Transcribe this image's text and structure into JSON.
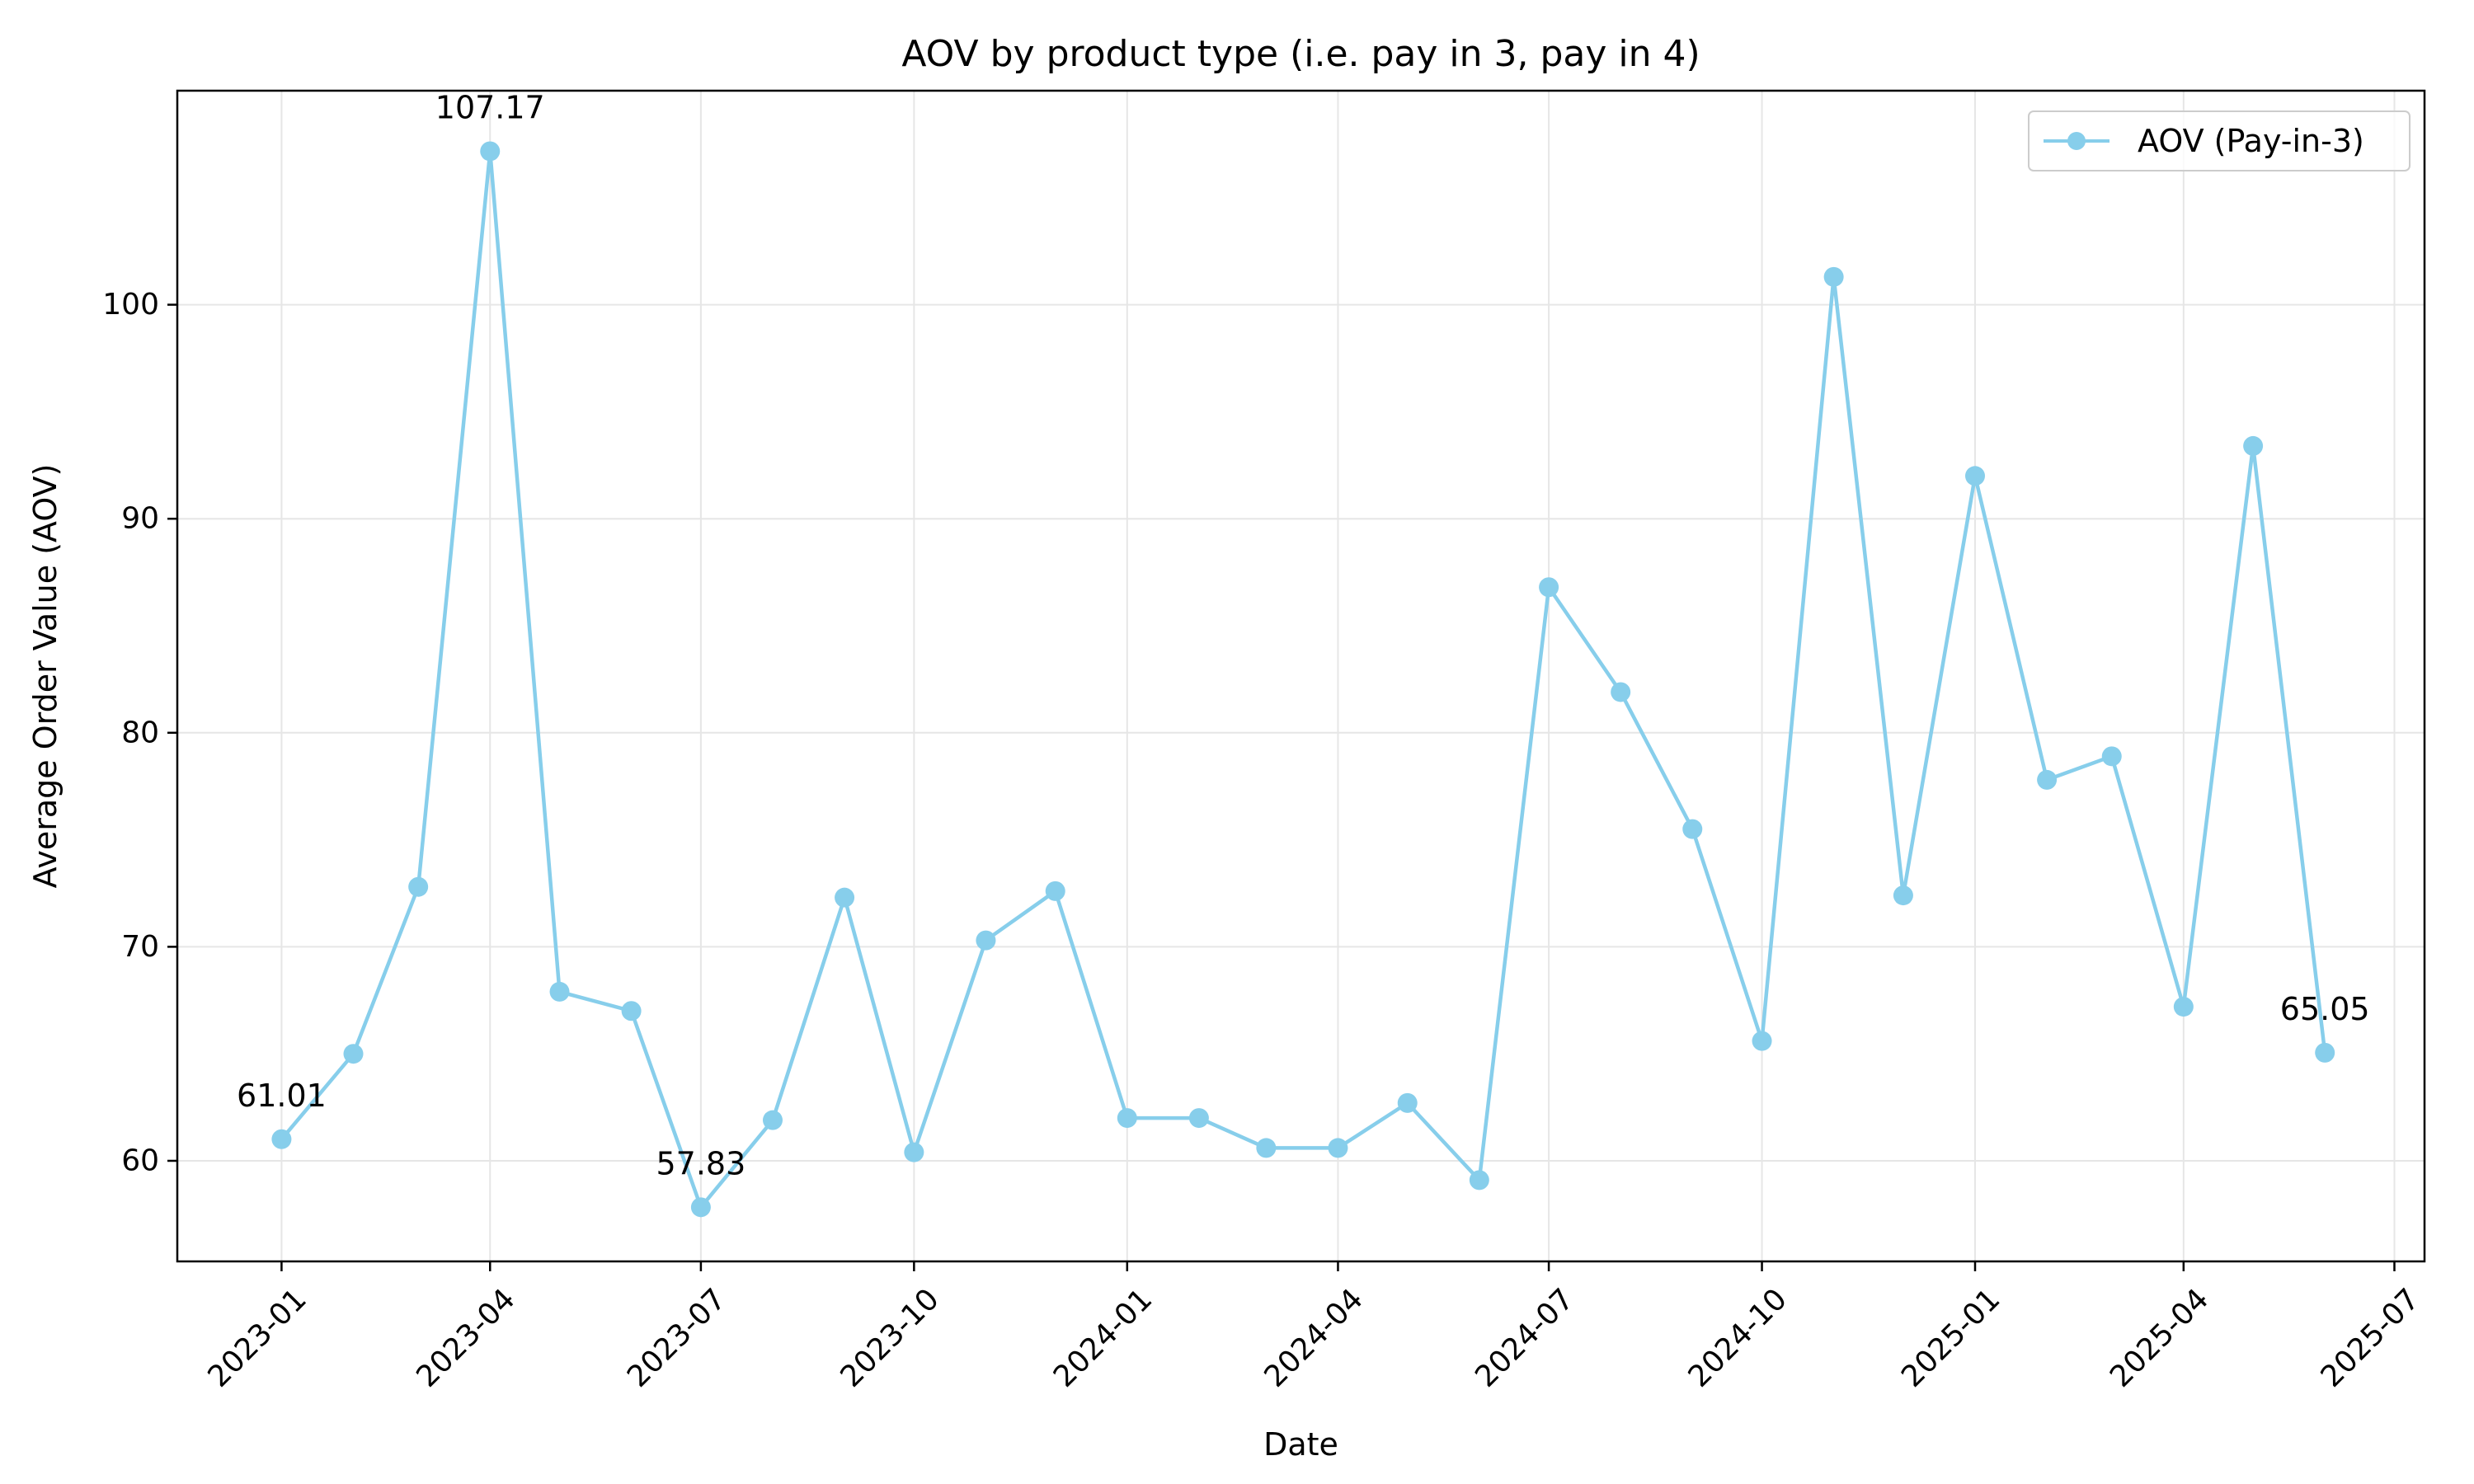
{
  "chart_data": {
    "type": "line",
    "title": "AOV by product type (i.e. pay in 3, pay in 4)",
    "xlabel": "Date",
    "ylabel": "Average Order Value (AOV)",
    "x_ticks": [
      "2023-01",
      "2023-04",
      "2023-07",
      "2023-10",
      "2024-01",
      "2024-04",
      "2024-07",
      "2024-10",
      "2025-01",
      "2025-04",
      "2025-07"
    ],
    "y_ticks": [
      60,
      70,
      80,
      90,
      100
    ],
    "xlim": [
      "2022-11-17",
      "2025-07-14"
    ],
    "ylim": [
      55.3,
      110.0
    ],
    "grid": true,
    "legend_position": "top-right",
    "colors": {
      "series": "#87CEEB",
      "grid": "#e6e6e6",
      "axis": "#000000"
    },
    "series": [
      {
        "name": "AOV (Pay-in-3)",
        "marker": "circle",
        "x": [
          "2023-01-01",
          "2023-02-01",
          "2023-03-01",
          "2023-04-01",
          "2023-05-01",
          "2023-06-01",
          "2023-07-01",
          "2023-08-01",
          "2023-09-01",
          "2023-10-01",
          "2023-11-01",
          "2023-12-01",
          "2024-01-01",
          "2024-02-01",
          "2024-03-01",
          "2024-04-01",
          "2024-05-01",
          "2024-06-01",
          "2024-07-01",
          "2024-08-01",
          "2024-09-01",
          "2024-10-01",
          "2024-11-01",
          "2024-12-01",
          "2025-01-01",
          "2025-02-01",
          "2025-03-01",
          "2025-04-01",
          "2025-05-01",
          "2025-06-01"
        ],
        "values": [
          61.01,
          65.0,
          72.8,
          107.17,
          67.9,
          67.0,
          57.83,
          61.9,
          72.3,
          60.4,
          70.3,
          72.6,
          62.0,
          62.0,
          60.6,
          60.6,
          62.7,
          59.1,
          86.8,
          81.9,
          75.5,
          65.6,
          101.3,
          72.4,
          92.0,
          77.8,
          78.9,
          67.2,
          93.4,
          65.05
        ]
      }
    ],
    "annotations": [
      {
        "x": "2023-01-01",
        "value": 61.01,
        "text": "61.01"
      },
      {
        "x": "2023-04-01",
        "value": 107.17,
        "text": "107.17"
      },
      {
        "x": "2023-07-01",
        "value": 57.83,
        "text": "57.83"
      },
      {
        "x": "2025-06-01",
        "value": 65.05,
        "text": "65.05"
      }
    ]
  }
}
